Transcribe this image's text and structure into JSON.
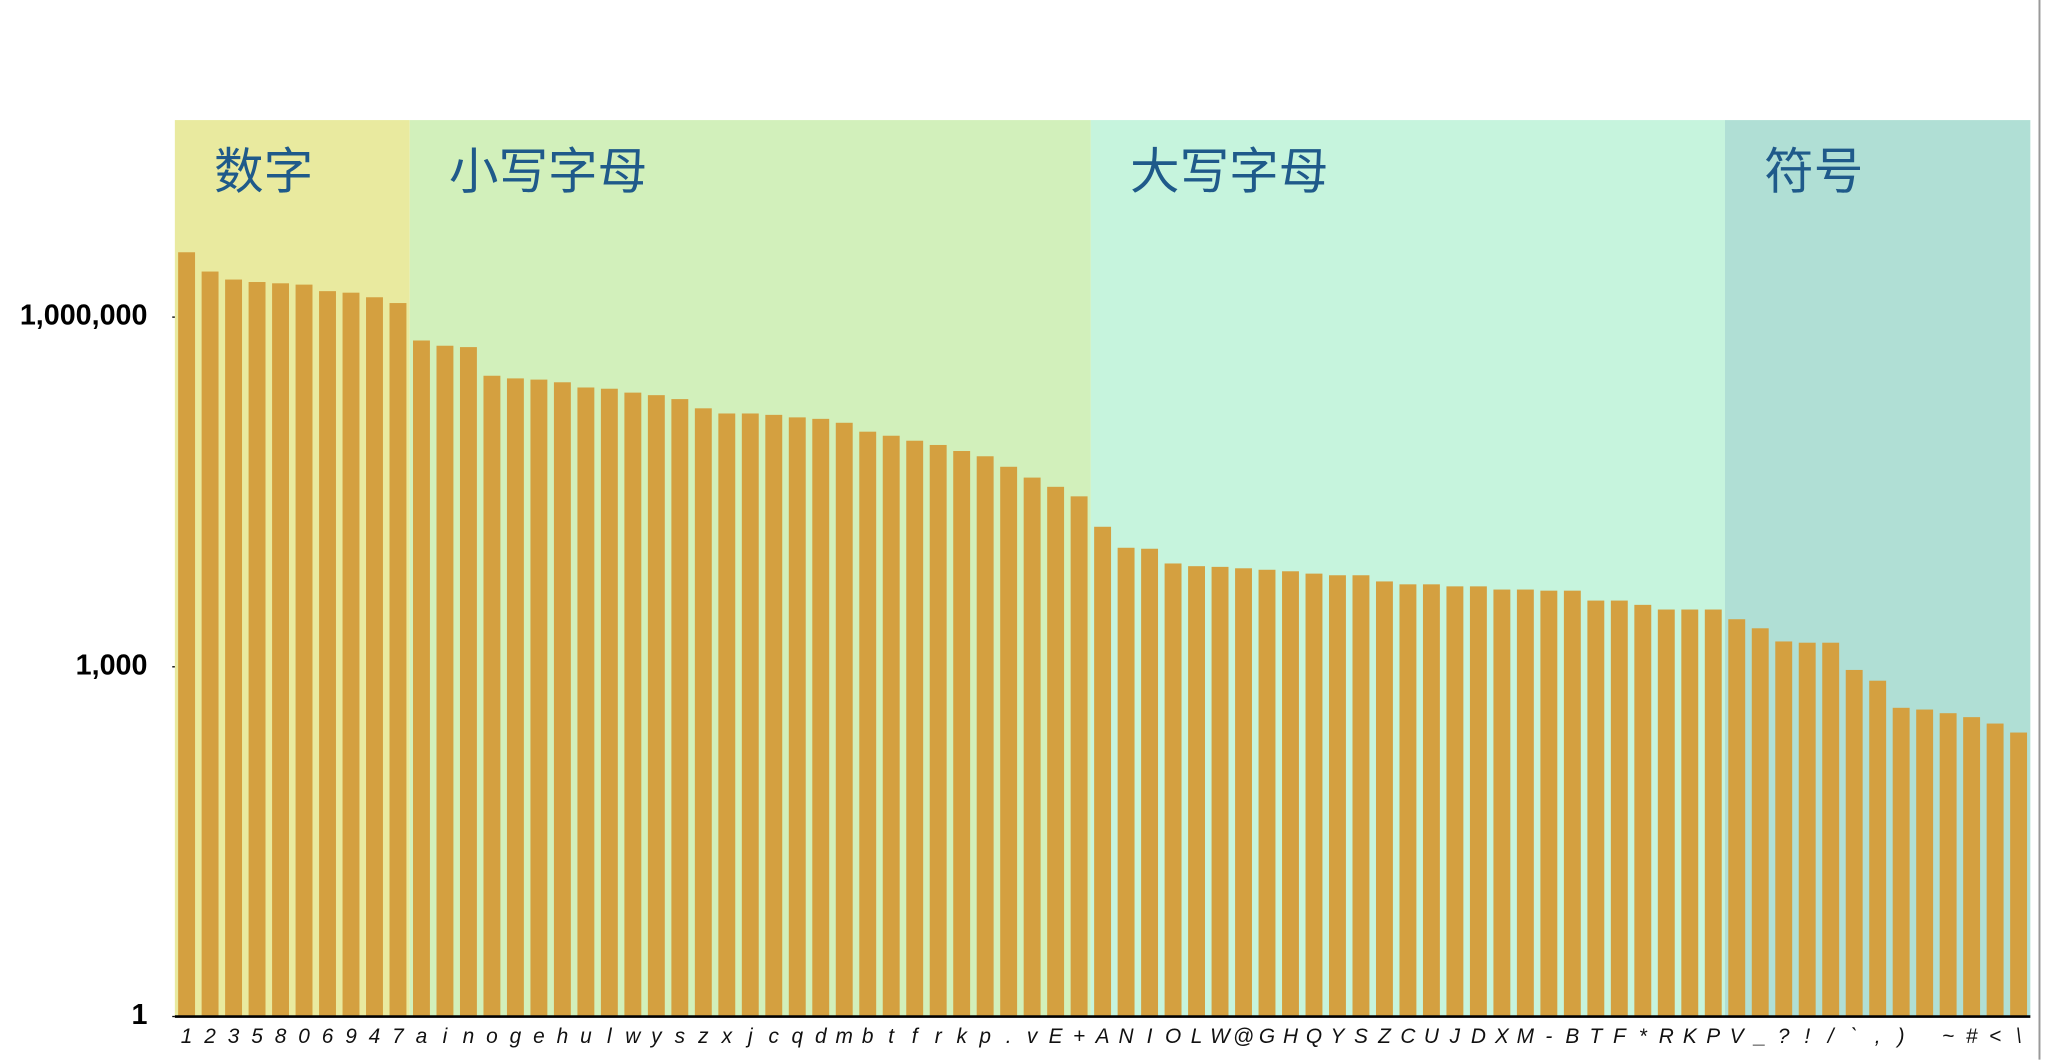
{
  "chart_data": {
    "type": "bar",
    "categories": [
      "1",
      "2",
      "3",
      "5",
      "8",
      "0",
      "6",
      "9",
      "4",
      "7",
      "a",
      "i",
      "n",
      "o",
      "g",
      "e",
      "h",
      "u",
      "l",
      "w",
      "y",
      "s",
      "z",
      "x",
      "j",
      "c",
      "q",
      "d",
      "m",
      "b",
      "t",
      "f",
      "r",
      "k",
      "p",
      ".",
      "v",
      "E",
      "+",
      "A",
      "N",
      "I",
      "O",
      "L",
      "W",
      "@",
      "G",
      "H",
      "Q",
      "Y",
      "S",
      "Z",
      "C",
      "U",
      "J",
      "D",
      "X",
      "M",
      "-",
      "B",
      "T",
      "F",
      "*",
      "R",
      "K",
      "P",
      "V",
      "_",
      "?",
      "!",
      "/",
      "`",
      ",",
      ")",
      null,
      "~",
      "#",
      "<",
      "\\"
    ],
    "values": [
      3600000,
      2460000,
      2100000,
      2000000,
      1950000,
      1900000,
      1670000,
      1620000,
      1480000,
      1320000,
      630000,
      568000,
      553000,
      314000,
      298000,
      291000,
      276000,
      249000,
      243000,
      225000,
      214000,
      198000,
      165000,
      149000,
      149000,
      145000,
      138000,
      134000,
      124000,
      104000,
      96000,
      87000,
      80000,
      71000,
      64000,
      52000,
      42000,
      35000,
      29000,
      15900,
      10500,
      10300,
      7700,
      7300,
      7200,
      7000,
      6800,
      6600,
      6300,
      6100,
      6100,
      5400,
      5100,
      5100,
      4900,
      4900,
      4600,
      4600,
      4500,
      4500,
      3700,
      3700,
      3400,
      3100,
      3100,
      3100,
      2560,
      2140,
      1650,
      1610,
      1610,
      940,
      760,
      445,
      430,
      400,
      370,
      326,
      273
    ],
    "color": "#d4a040",
    "log_scale": true,
    "ylim": [
      1,
      49000000
    ],
    "yticks": [
      1,
      {
        "value": 1000,
        "label": "1,000"
      },
      {
        "value": 1000000,
        "label": "1,000,000"
      }
    ],
    "groups": [
      {
        "label": "数字",
        "first": "1",
        "last": "7",
        "color": "#e9ea9f"
      },
      {
        "label": "小写字母",
        "first": "a",
        "last": "+",
        "color": "#d2f0bb"
      },
      {
        "label": "大写字母",
        "first": "A",
        "last": "P",
        "color": "#c6f4dd"
      },
      {
        "label": "符号",
        "first": "V",
        "last": "\\",
        "color": "#b0dfd5"
      }
    ]
  }
}
